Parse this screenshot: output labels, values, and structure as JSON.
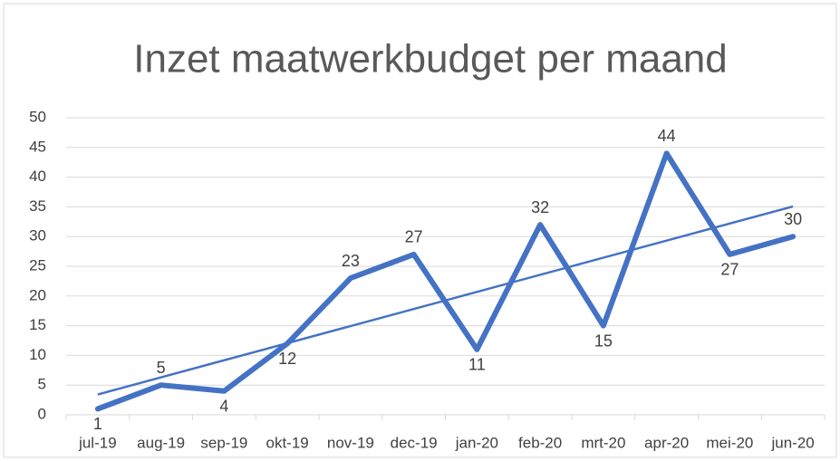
{
  "chart_data": {
    "type": "line",
    "title": "Inzet maatwerkbudget per maand",
    "categories": [
      "jul-19",
      "aug-19",
      "sep-19",
      "okt-19",
      "nov-19",
      "dec-19",
      "jan-20",
      "feb-20",
      "mrt-20",
      "apr-20",
      "mei-20",
      "jun-20"
    ],
    "values": [
      1,
      5,
      4,
      12,
      23,
      27,
      11,
      32,
      15,
      44,
      27,
      30
    ],
    "color": "#4472c4",
    "trendline": true,
    "ylim": [
      0,
      50
    ],
    "yticks": [
      0,
      5,
      10,
      15,
      20,
      25,
      30,
      35,
      40,
      45,
      50
    ],
    "grid": true
  }
}
